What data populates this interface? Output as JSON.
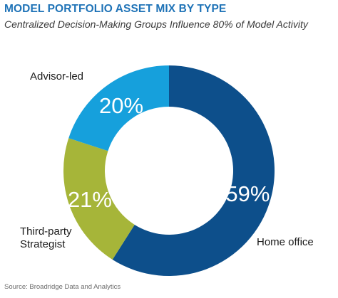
{
  "chart_data": {
    "type": "pie",
    "title": "MODEL PORTFOLIO ASSET MIX BY TYPE",
    "subtitle": "Centralized Decision-Making Groups Influence 80% of Model Activity",
    "slices": [
      {
        "label": "Home office",
        "value": 59,
        "value_label": "59%",
        "color": "#0d4f8b"
      },
      {
        "label": "Third-party Strategist",
        "label_lines": [
          "Third-party",
          "Strategist"
        ],
        "value": 21,
        "value_label": "21%",
        "color": "#a6b539"
      },
      {
        "label": "Advisor-led",
        "value": 20,
        "value_label": "20%",
        "color": "#16a0dc"
      }
    ],
    "legend": "labels beside slices",
    "source": "Source: Broadridge Data and Analytics"
  }
}
